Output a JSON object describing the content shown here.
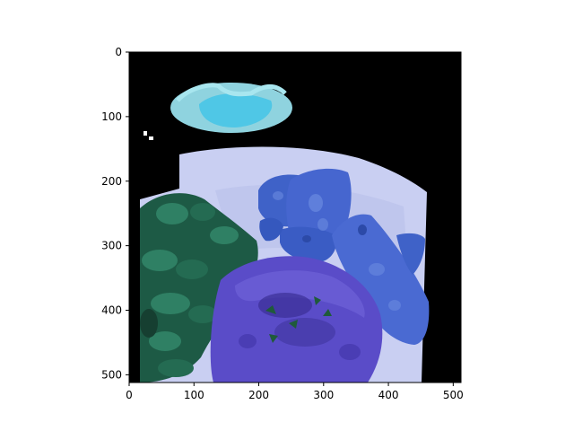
{
  "chart_data": {
    "type": "image",
    "title": "",
    "xlabel": "",
    "ylabel": "",
    "xlim": [
      0,
      512
    ],
    "ylim": [
      512,
      0
    ],
    "x_ticks": [
      0,
      100,
      200,
      300,
      400,
      500
    ],
    "y_ticks": [
      0,
      100,
      200,
      300,
      400,
      500
    ],
    "grid": false,
    "image_content": "food plate in false color: blue-tinted bread toasts, purple tartare patty, green herb leaves, cyan bowl at top, on a white plate with black background",
    "colors": {
      "background": "#000000",
      "plate": "#c9cff2",
      "bread": "#3f62c8",
      "bread_light": "#6a8ae0",
      "patty": "#5a4cc8",
      "patty_dark": "#3a2f96",
      "greens": "#1d5a45",
      "greens_light": "#2f8064",
      "bowl": "#8fd3df",
      "bowl_inner": "#4fc7e6"
    }
  }
}
